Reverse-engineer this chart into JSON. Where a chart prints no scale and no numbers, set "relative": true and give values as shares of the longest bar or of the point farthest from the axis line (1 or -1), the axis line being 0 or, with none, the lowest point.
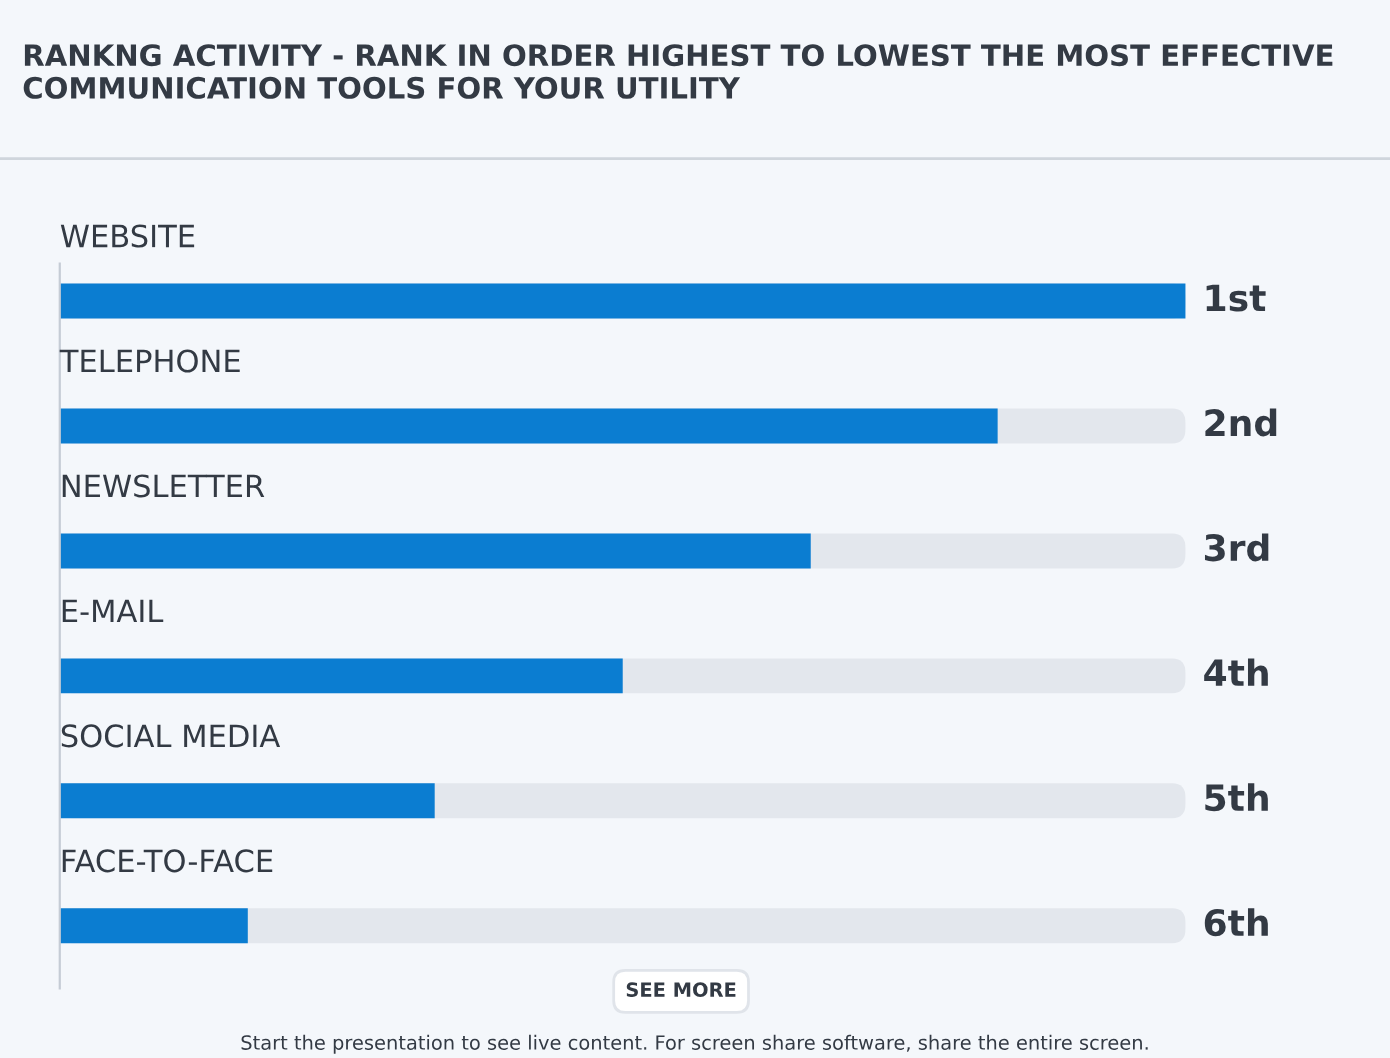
{
  "chart_data": {
    "type": "bar",
    "orientation": "horizontal",
    "relative": true,
    "title": "RANKNG ACTIVITY - RANK IN ORDER HIGHEST TO LOWEST THE MOST EFFECTIVE COMMUNICATION TOOLS FOR YOUR UTILITY",
    "categories": [
      "WEBSITE",
      "TELEPHONE",
      "NEWSLETTER",
      "E-MAIL",
      "SOCIAL MEDIA",
      "FACE-TO-FACE"
    ],
    "values": [
      1,
      0.833,
      0.667,
      0.5,
      0.333,
      0.167
    ],
    "color": "#0b7dd1",
    "legend": false,
    "annotations": [
      "1st",
      "2nd",
      "3rd",
      "4th",
      "5th",
      "6th",
      "SEE MORE",
      "Start the presentation to see live content. For screen share software, share the entire screen."
    ]
  }
}
